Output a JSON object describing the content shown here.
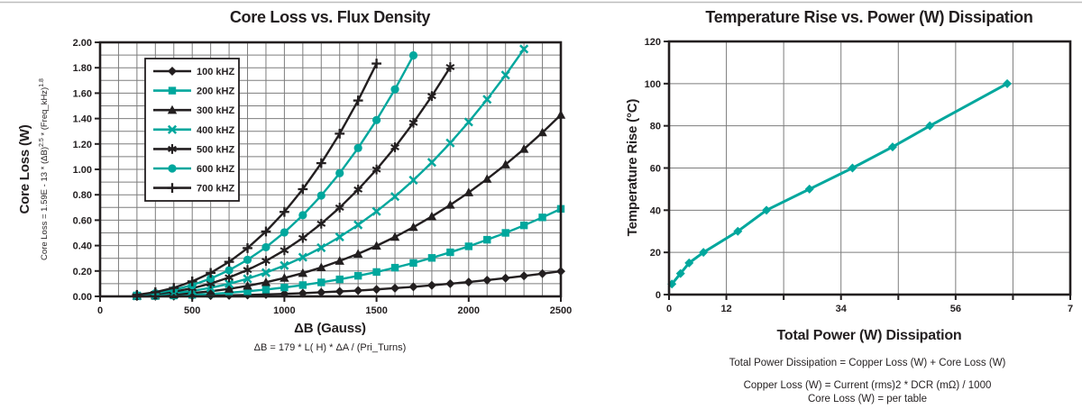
{
  "colors": {
    "ink": "#231f20",
    "teal": "#00a79d",
    "grid": "#7d7d7d",
    "top_rule": "#bdbdbd",
    "background": "#ffffff"
  },
  "left_chart": {
    "title": "Core Loss vs. Flux Density",
    "y_axis": {
      "label": "Core Loss (W)",
      "formula_base1": "Core Loss = 1.59E - 13 * (ΔB)",
      "formula_sup1": "2.5",
      "formula_base2": " * (Freq_kHz)",
      "formula_sup2": "1.8"
    },
    "x_axis": {
      "label": "ΔB (Gauss)",
      "formula": "ΔB = 179 * L( H) * ΔA / (Pri_Turns)"
    },
    "legend_labels": [
      "100 kHZ",
      "200 kHZ",
      "300 kHZ",
      "400 kHZ",
      "500 kHZ",
      "600 kHZ",
      "700 kHZ"
    ]
  },
  "right_chart": {
    "title": "Temperature Rise vs. Power (W) Dissipation",
    "y_axis": {
      "label": "Temperature Rise (°C)"
    },
    "x_axis": {
      "label": "Total Power (W) Dissipation"
    },
    "footnotes": [
      "Total Power Dissipation = Copper Loss (W) + Core Loss (W)",
      "Copper Loss (W) = Current (rms)2 * DCR (mΩ) / 1000",
      "Core Loss (W) = per table"
    ]
  },
  "chart_data": [
    {
      "type": "line",
      "title": "Core Loss vs. Flux Density",
      "xlabel": "ΔB (Gauss)",
      "ylabel": "Core Loss (W)",
      "xlim": [
        0,
        2500
      ],
      "ylim": [
        0,
        2.0
      ],
      "x_tick_step": 500,
      "y_tick_step": 0.2,
      "y_tick_decimals": 2,
      "x_grid_step": 100,
      "y_grid_step": 0.1,
      "grid": true,
      "legend_position": "upper-left",
      "x_values": [
        200,
        300,
        400,
        500,
        600,
        700,
        800,
        900,
        1000,
        1100,
        1200,
        1300,
        1400,
        1500,
        1600,
        1700,
        1800,
        1900,
        2000,
        2100,
        2200,
        2300,
        2400,
        2500
      ],
      "series": [
        {
          "name": "100 kHZ",
          "color": "#231f20",
          "marker": "diamond",
          "values": [
            0.0,
            0.001,
            0.002,
            0.004,
            0.006,
            0.008,
            0.011,
            0.015,
            0.02,
            0.025,
            0.032,
            0.039,
            0.046,
            0.055,
            0.065,
            0.075,
            0.087,
            0.1,
            0.113,
            0.128,
            0.144,
            0.161,
            0.179,
            0.198
          ]
        },
        {
          "name": "200 kHZ",
          "color": "#00a79d",
          "marker": "square",
          "values": [
            0.001,
            0.003,
            0.007,
            0.012,
            0.019,
            0.029,
            0.04,
            0.054,
            0.07,
            0.089,
            0.11,
            0.134,
            0.162,
            0.192,
            0.226,
            0.263,
            0.303,
            0.347,
            0.394,
            0.446,
            0.5,
            0.559,
            0.622,
            0.689
          ]
        },
        {
          "name": "300 kHZ",
          "color": "#231f20",
          "marker": "triangle",
          "values": [
            0.003,
            0.007,
            0.015,
            0.026,
            0.04,
            0.059,
            0.083,
            0.111,
            0.145,
            0.183,
            0.228,
            0.279,
            0.335,
            0.398,
            0.468,
            0.545,
            0.629,
            0.72,
            0.818,
            0.924,
            1.038,
            1.16,
            1.29,
            1.429
          ]
        },
        {
          "name": "400 kHZ",
          "color": "#00a79d",
          "marker": "x",
          "values": [
            0.004,
            0.012,
            0.025,
            0.043,
            0.068,
            0.099,
            0.139,
            0.187,
            0.243,
            0.308,
            0.383,
            0.468,
            0.563,
            0.669,
            0.786,
            0.915,
            1.055,
            1.208,
            1.373,
            1.551,
            1.742,
            1.947
          ]
        },
        {
          "name": "500 kHZ",
          "color": "#231f20",
          "marker": "asterisk",
          "values": [
            0.006,
            0.018,
            0.037,
            0.064,
            0.101,
            0.149,
            0.208,
            0.279,
            0.363,
            0.46,
            0.572,
            0.699,
            0.841,
            0.999,
            1.174,
            1.367,
            1.577,
            1.805
          ]
        },
        {
          "name": "600 kHZ",
          "color": "#00a79d",
          "marker": "circle",
          "values": [
            0.009,
            0.025,
            0.051,
            0.089,
            0.14,
            0.206,
            0.288,
            0.387,
            0.504,
            0.639,
            0.794,
            0.97,
            1.168,
            1.388,
            1.63,
            1.897
          ]
        },
        {
          "name": "700 kHZ",
          "color": "#231f20",
          "marker": "plus",
          "values": [
            0.012,
            0.033,
            0.067,
            0.118,
            0.185,
            0.272,
            0.38,
            0.511,
            0.665,
            0.844,
            1.049,
            1.281,
            1.542,
            1.833
          ]
        }
      ]
    },
    {
      "type": "line",
      "title": "Temperature Rise vs. Power (W) Dissipation",
      "xlabel": "Total Power (W) Dissipation",
      "ylabel": "Temperature Rise (°C)",
      "xlim": [
        0,
        7
      ],
      "ylim": [
        0,
        120
      ],
      "y_tick_step": 20,
      "y_tick_decimals": 0,
      "x_grid_step": 1,
      "y_grid_step": 20,
      "grid": true,
      "x_tick_labels": [
        {
          "x": 0,
          "text": "0"
        },
        {
          "x": 1,
          "text": "12"
        },
        {
          "x": 3,
          "text": "34"
        },
        {
          "x": 5,
          "text": "56"
        },
        {
          "x": 7,
          "text": "7"
        }
      ],
      "series": [
        {
          "name": "Temperature Rise",
          "color": "#00a79d",
          "marker": "diamond",
          "x": [
            0.05,
            0.2,
            0.35,
            0.6,
            1.2,
            1.7,
            2.45,
            3.2,
            3.9,
            4.55,
            5.9
          ],
          "y": [
            5,
            10,
            15,
            20,
            30,
            40,
            50,
            60,
            70,
            80,
            100
          ]
        }
      ]
    }
  ]
}
